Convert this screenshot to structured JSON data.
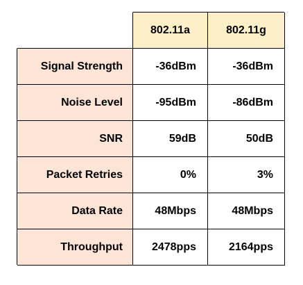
{
  "colors": {
    "column_header_bg": "#fdefc8",
    "row_header_bg": "#fce4d6",
    "border": "#000000"
  },
  "table": {
    "columns": [
      "802.11a",
      "802.11g"
    ],
    "rows": [
      {
        "label": "Signal Strength",
        "values": [
          "-36dBm",
          "-36dBm"
        ]
      },
      {
        "label": "Noise Level",
        "values": [
          "-95dBm",
          "-86dBm"
        ]
      },
      {
        "label": "SNR",
        "values": [
          "59dB",
          "50dB"
        ]
      },
      {
        "label": "Packet Retries",
        "values": [
          "0%",
          "3%"
        ]
      },
      {
        "label": "Data Rate",
        "values": [
          "48Mbps",
          "48Mbps"
        ]
      },
      {
        "label": "Throughput",
        "values": [
          "2478pps",
          "2164pps"
        ]
      }
    ]
  }
}
